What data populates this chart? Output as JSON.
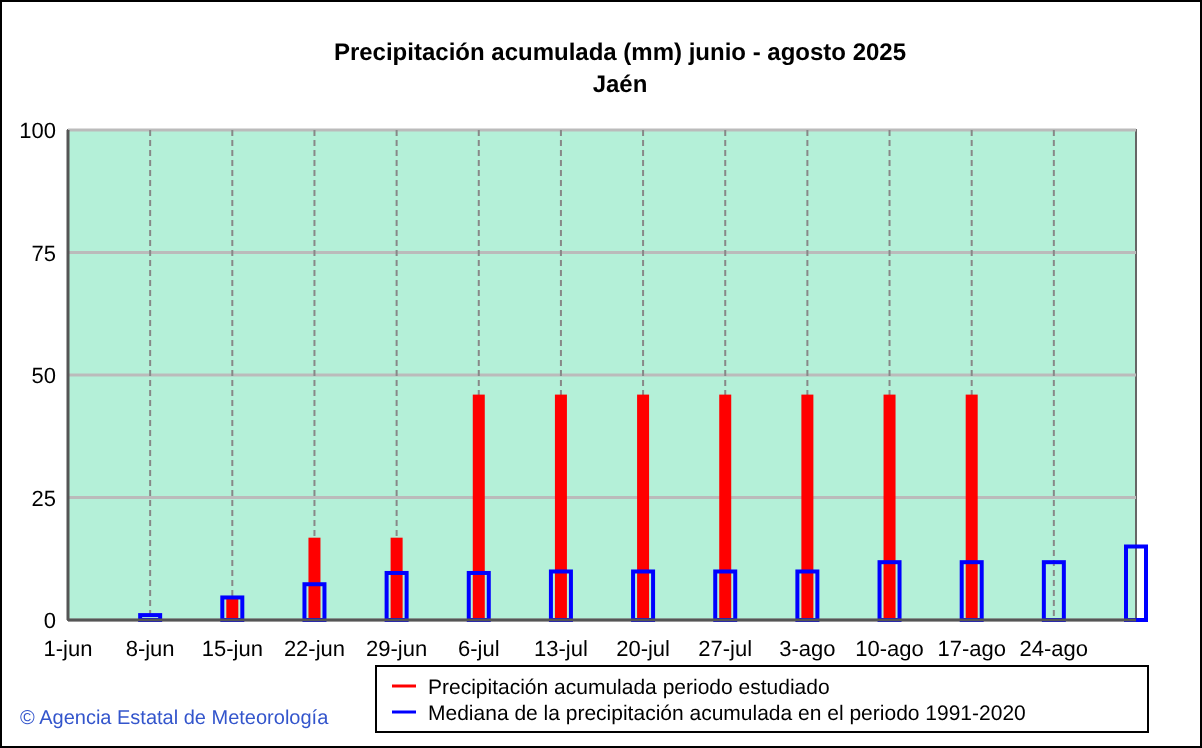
{
  "chart_data": {
    "type": "bar",
    "title": "Precipitación acumulada (mm) junio - agosto 2025",
    "subtitle": "Jaén",
    "categories": [
      "1-jun",
      "8-jun",
      "15-jun",
      "22-jun",
      "29-jun",
      "6-jul",
      "13-jul",
      "20-jul",
      "27-jul",
      "3-ago",
      "10-ago",
      "17-ago",
      "24-ago",
      null
    ],
    "series": [
      {
        "name": "Precipitación acumulada periodo estudiado",
        "color": "#ff0000",
        "values": [
          null,
          0,
          4.3,
          16.8,
          16.8,
          46,
          46,
          46,
          46,
          46,
          46,
          46,
          null,
          null
        ]
      },
      {
        "name": "Mediana de la precipitación acumulada en el periodo 1991-2020",
        "color": "#0000ff",
        "values": [
          null,
          1,
          4.6,
          7.3,
          9.6,
          9.6,
          9.9,
          9.9,
          9.9,
          9.9,
          11.8,
          11.8,
          11.8,
          15
        ]
      }
    ],
    "ylim": [
      0,
      100
    ],
    "yticks": [
      0,
      25,
      50,
      75,
      100
    ],
    "grid": true,
    "legend": "bottom",
    "annotations": [
      "© Agencia Estatal de Meteorología"
    ]
  }
}
